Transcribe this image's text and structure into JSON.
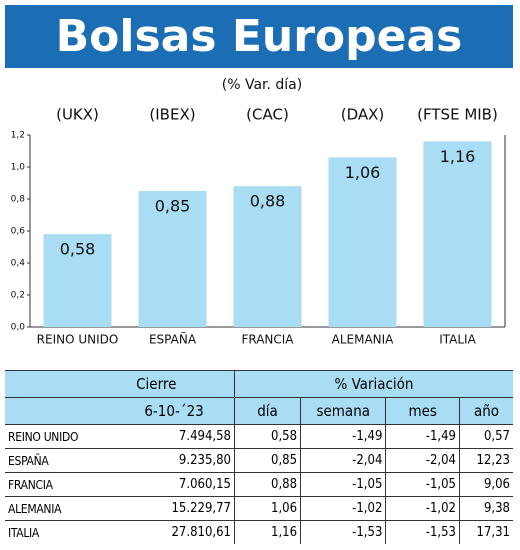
{
  "chart_data": {
    "type": "bar",
    "title": "Bolsas Europeas",
    "subtitle": "(% Var. día)",
    "tickers": [
      "(UKX)",
      "(IBEX)",
      "(CAC)",
      "(DAX)",
      "(FTSE MIB)"
    ],
    "categories": [
      "REINO UNIDO",
      "ESPAÑA",
      "FRANCIA",
      "ALEMANIA",
      "ITALIA"
    ],
    "values": [
      0.58,
      0.85,
      0.88,
      1.06,
      1.16
    ],
    "value_labels": [
      "0,58",
      "0,85",
      "0,88",
      "1,06",
      "1,16"
    ],
    "color": "#a8ddf3",
    "ylim": [
      0,
      1.2
    ],
    "yticks": [
      {
        "value": 0,
        "label": "0,0"
      },
      {
        "value": 0.2,
        "label": "0,2"
      },
      {
        "value": 0.4,
        "label": "0,4"
      },
      {
        "value": 0.6,
        "label": "0,6"
      },
      {
        "value": 0.8,
        "label": "0,8"
      },
      {
        "value": 1.0,
        "label": "1,0"
      },
      {
        "value": 1.2,
        "label": "1,2"
      }
    ],
    "grid": false
  },
  "table": {
    "header": [
      "Cierre",
      "% Variación"
    ],
    "subheader": [
      "6-10-´23",
      "día",
      "semana",
      "mes",
      "año"
    ],
    "rows": [
      [
        "REINO UNIDO",
        "7.494,58",
        "0,58",
        "-1,49",
        "-1,49",
        "0,57"
      ],
      [
        "ESPAÑA",
        "9.235,80",
        "0,85",
        "-2,04",
        "-2,04",
        "12,23"
      ],
      [
        "FRANCIA",
        "7.060,15",
        "0,88",
        "-1,05",
        "-1,05",
        "9,06"
      ],
      [
        "ALEMANIA",
        "15.229,77",
        "1,06",
        "-1,02",
        "-1,02",
        "9,38"
      ],
      [
        "ITALIA",
        "27.810,61",
        "1,16",
        "-1,53",
        "-1,53",
        "17,31"
      ]
    ]
  }
}
